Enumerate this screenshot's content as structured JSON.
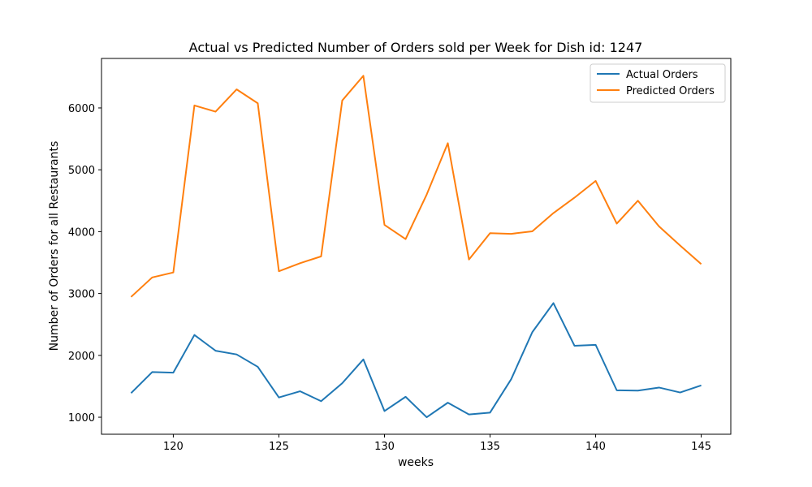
{
  "chart_data": {
    "type": "line",
    "title": "Actual vs Predicted Number of Orders sold per Week for Dish id: 1247",
    "xlabel": "weeks",
    "ylabel": "Number of Orders for all Restaurants",
    "x": [
      118,
      119,
      120,
      121,
      122,
      123,
      124,
      125,
      126,
      127,
      128,
      129,
      130,
      131,
      132,
      133,
      134,
      135,
      136,
      137,
      138,
      139,
      140,
      141,
      142,
      143,
      144,
      145
    ],
    "xlim": [
      116.6,
      146.4
    ],
    "ylim": [
      725,
      6800
    ],
    "xticks": [
      120,
      125,
      130,
      135,
      140,
      145
    ],
    "yticks": [
      1000,
      2000,
      3000,
      4000,
      5000,
      6000
    ],
    "grid": false,
    "legend_position": "top-right",
    "series": [
      {
        "name": "Actual Orders",
        "color": "#1f77b4",
        "values": [
          1390,
          1730,
          1720,
          2330,
          2075,
          2015,
          1815,
          1320,
          1420,
          1260,
          1550,
          1935,
          1100,
          1330,
          1000,
          1235,
          1045,
          1075,
          1615,
          2375,
          2845,
          2155,
          2170,
          1435,
          1430,
          1480,
          1400,
          1515
        ]
      },
      {
        "name": "Predicted Orders",
        "color": "#ff7f0e",
        "values": [
          2945,
          3260,
          3340,
          6040,
          5940,
          6300,
          6075,
          3360,
          3490,
          3600,
          6120,
          6520,
          4110,
          3880,
          4600,
          5430,
          3550,
          3975,
          3965,
          4005,
          4300,
          4550,
          4820,
          4130,
          4500,
          4085,
          3775,
          3475
        ]
      }
    ]
  }
}
